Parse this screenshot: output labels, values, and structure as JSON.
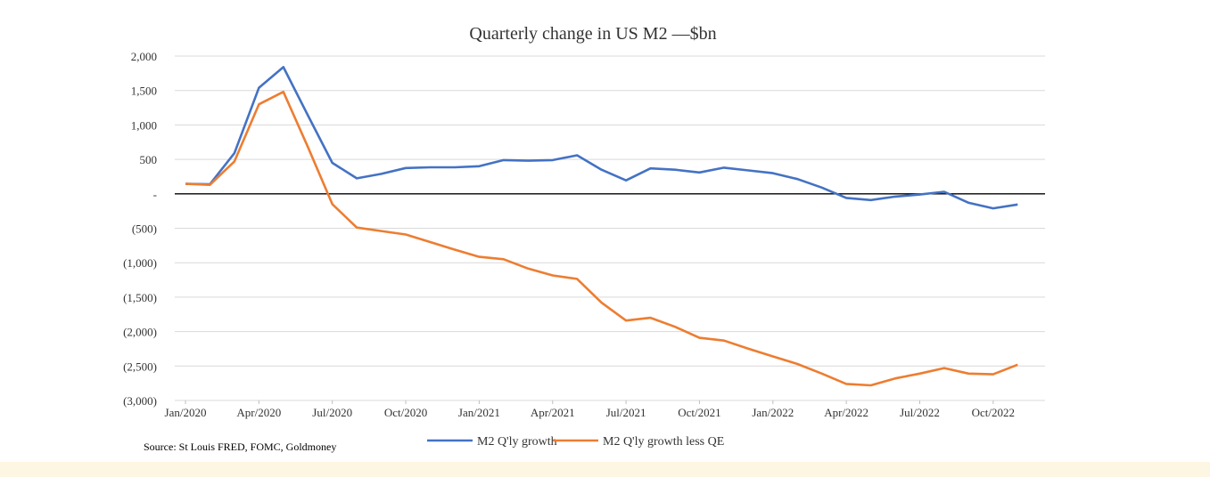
{
  "source": "Source: St Louis FRED, FOMC, Goldmoney",
  "colors": {
    "m2": "#4472c4",
    "m2_less_qe": "#ed7d31",
    "grid": "#d9d9d9",
    "zero_line": "#000000",
    "band": "#fdf6e3"
  },
  "chart_data": {
    "type": "line",
    "title": "Quarterly change in US M2 —$bn",
    "ylim": [
      -3000,
      2000
    ],
    "yticks": [
      2000,
      1500,
      1000,
      500,
      0,
      -500,
      -1000,
      -1500,
      -2000,
      -2500,
      -3000
    ],
    "ytick_labels": [
      "2,000",
      "1,500",
      "1,000",
      "500",
      "-",
      "(500)",
      "(1,000)",
      "(1,500)",
      "(2,000)",
      "(2,500)",
      "(3,000)"
    ],
    "xtick_labels": [
      "Jan/2020",
      "Apr/2020",
      "Jul/2020",
      "Oct/2020",
      "Jan/2021",
      "Apr/2021",
      "Jul/2021",
      "Oct/2021",
      "Jan/2022",
      "Apr/2022",
      "Jul/2022",
      "Oct/2022"
    ],
    "x_months": [
      "Jan/2020",
      "Feb/2020",
      "Mar/2020",
      "Apr/2020",
      "May/2020",
      "Jun/2020",
      "Jul/2020",
      "Aug/2020",
      "Sep/2020",
      "Oct/2020",
      "Nov/2020",
      "Dec/2020",
      "Jan/2021",
      "Feb/2021",
      "Mar/2021",
      "Apr/2021",
      "May/2021",
      "Jun/2021",
      "Jul/2021",
      "Aug/2021",
      "Sep/2021",
      "Oct/2021",
      "Nov/2021",
      "Dec/2021",
      "Jan/2022",
      "Feb/2022",
      "Mar/2022",
      "Apr/2022",
      "May/2022",
      "Jun/2022",
      "Jul/2022",
      "Aug/2022",
      "Sep/2022",
      "Oct/2022",
      "Nov/2022",
      "Dec/2022"
    ],
    "grid": true,
    "legend": "bottom",
    "series": [
      {
        "name": "M2 Q'ly growth",
        "values": [
          145,
          140,
          590,
          1540,
          1840,
          1140,
          450,
          225,
          290,
          375,
          385,
          385,
          400,
          490,
          480,
          490,
          560,
          350,
          195,
          370,
          350,
          310,
          380,
          340,
          300,
          215,
          90,
          -60,
          -90,
          -40,
          -10,
          30,
          -130,
          -210,
          -155
        ]
      },
      {
        "name": "M2 Q'ly growth less QE",
        "values": [
          145,
          130,
          470,
          1300,
          1480,
          680,
          -150,
          -490,
          -540,
          -590,
          -700,
          -810,
          -915,
          -950,
          -1085,
          -1185,
          -1235,
          -1580,
          -1840,
          -1800,
          -1930,
          -2090,
          -2130,
          -2250,
          -2360,
          -2470,
          -2610,
          -2760,
          -2780,
          -2680,
          -2610,
          -2530,
          -2610,
          -2620,
          -2480
        ]
      }
    ]
  }
}
